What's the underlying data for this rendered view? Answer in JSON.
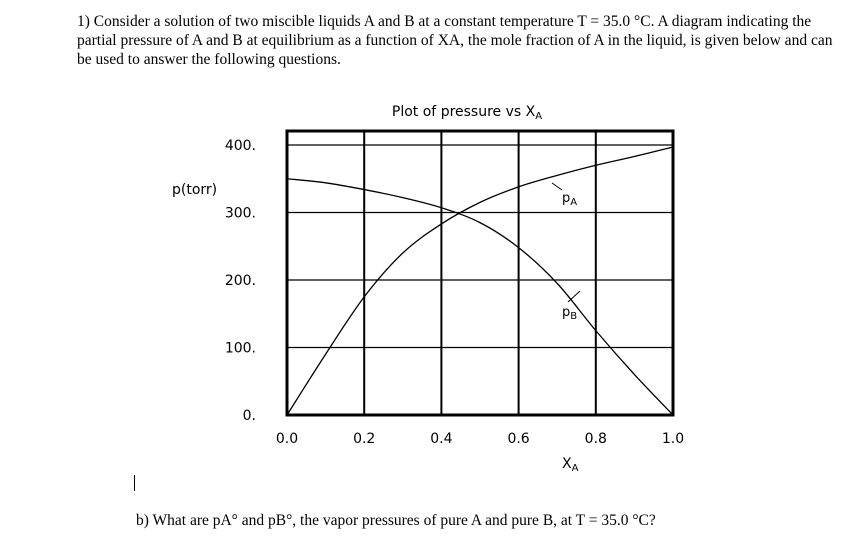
{
  "question": {
    "text": "1) Consider a solution of two miscible liquids A and B at a constant temperature T = 35.0 °C.  A diagram indicating the partial pressure of A and B at equilibrium as a function of XA, the mole fraction of A in the liquid, is given below and can be used to answer the following questions."
  },
  "part_b": {
    "text": "b) What are pA° and pB°, the vapor pressures of pure A and pure B, at T = 35.0 °C?"
  },
  "chart_data": {
    "type": "line",
    "title": "Plot of pressure vs XA",
    "xlabel": "XA",
    "ylabel": "p(torr)",
    "xlim": [
      0,
      1
    ],
    "ylim": [
      0,
      400
    ],
    "grid": true,
    "x_ticks": [
      "0.0",
      "0.2",
      "0.4",
      "0.6",
      "0.8",
      "1.0"
    ],
    "y_ticks": [
      "0.",
      "100.",
      "200.",
      "300.",
      "400."
    ],
    "annotations": [
      "pA",
      "pB"
    ],
    "series": [
      {
        "name": "pA",
        "x": [
          0,
          0.1,
          0.2,
          0.3,
          0.4,
          0.5,
          0.6,
          0.7,
          0.8,
          0.9,
          1.0
        ],
        "values": [
          0,
          90,
          175,
          240,
          283,
          315,
          338,
          355,
          370,
          383,
          397
        ]
      },
      {
        "name": "pB",
        "x": [
          0,
          0.1,
          0.2,
          0.3,
          0.4,
          0.5,
          0.6,
          0.7,
          0.8,
          0.9,
          1.0
        ],
        "values": [
          350,
          344,
          334,
          322,
          307,
          285,
          248,
          195,
          125,
          60,
          0
        ]
      }
    ]
  }
}
